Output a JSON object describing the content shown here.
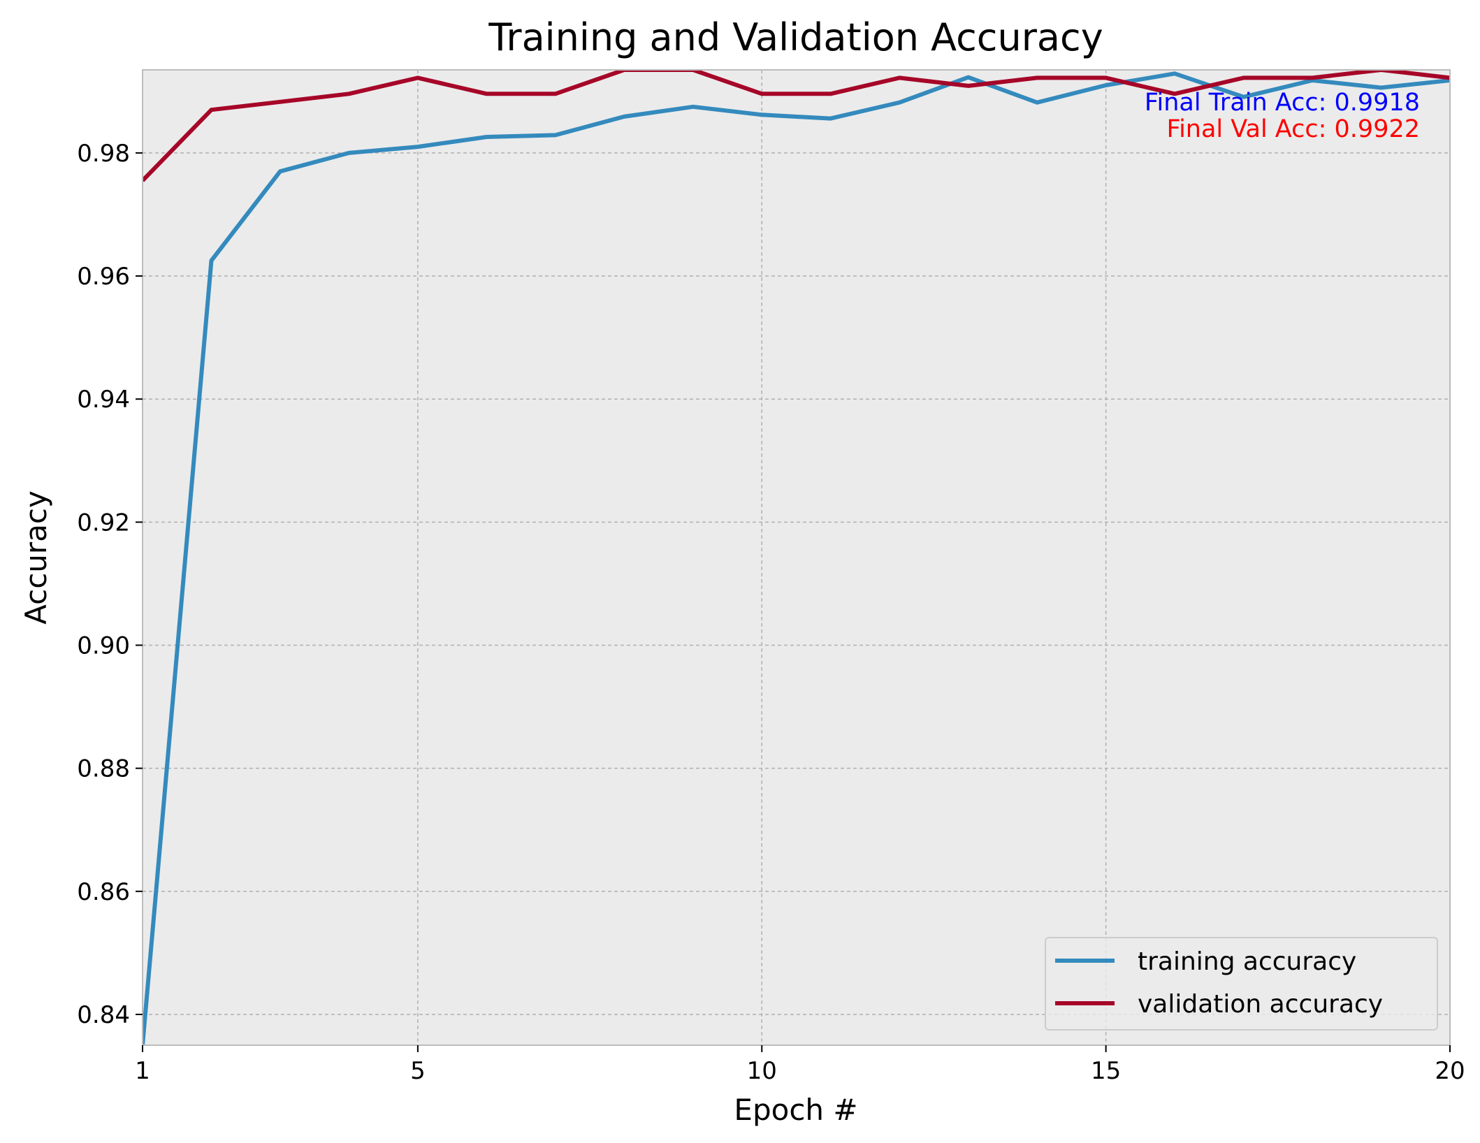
{
  "chart_data": {
    "type": "line",
    "title": "Training and Validation Accuracy",
    "xlabel": "Epoch #",
    "ylabel": "Accuracy",
    "xlim": [
      1,
      20
    ],
    "ylim": [
      0.835,
      0.9935
    ],
    "xticks": [
      1,
      5,
      10,
      15,
      20
    ],
    "xtick_labels": [
      "1",
      "5",
      "10",
      "15",
      "20"
    ],
    "yticks": [
      0.84,
      0.86,
      0.88,
      0.9,
      0.92,
      0.94,
      0.96,
      0.98
    ],
    "ytick_labels": [
      "0.84",
      "0.86",
      "0.88",
      "0.90",
      "0.92",
      "0.94",
      "0.96",
      "0.98"
    ],
    "grid": true,
    "legend_position": "lower-right",
    "x": [
      1,
      2,
      3,
      4,
      5,
      6,
      7,
      8,
      9,
      10,
      11,
      12,
      13,
      14,
      15,
      16,
      17,
      18,
      19,
      20
    ],
    "series": [
      {
        "name": "training accuracy",
        "color": "#348ABD",
        "values": [
          0.835,
          0.9625,
          0.977,
          0.98,
          0.981,
          0.9826,
          0.9829,
          0.9859,
          0.9875,
          0.9862,
          0.9856,
          0.9882,
          0.9923,
          0.9882,
          0.991,
          0.9929,
          0.9891,
          0.9918,
          0.9906,
          0.9918
        ]
      },
      {
        "name": "validation accuracy",
        "color": "#A60628",
        "values": [
          0.9755,
          0.987,
          0.9883,
          0.9896,
          0.9922,
          0.9896,
          0.9896,
          0.9935,
          0.9935,
          0.9896,
          0.9896,
          0.9922,
          0.9909,
          0.9922,
          0.9922,
          0.9896,
          0.9922,
          0.9922,
          0.9935,
          0.9922
        ]
      }
    ],
    "annotations": [
      {
        "text": "Final Train Acc: 0.9918",
        "color": "#0000FF"
      },
      {
        "text": "Final Val Acc: 0.9922",
        "color": "#FF0000"
      }
    ],
    "colors": {
      "plot_background": "#EBEBEB",
      "grid": "#B0B0B0",
      "axes_edge": "#BCBCBC"
    }
  }
}
